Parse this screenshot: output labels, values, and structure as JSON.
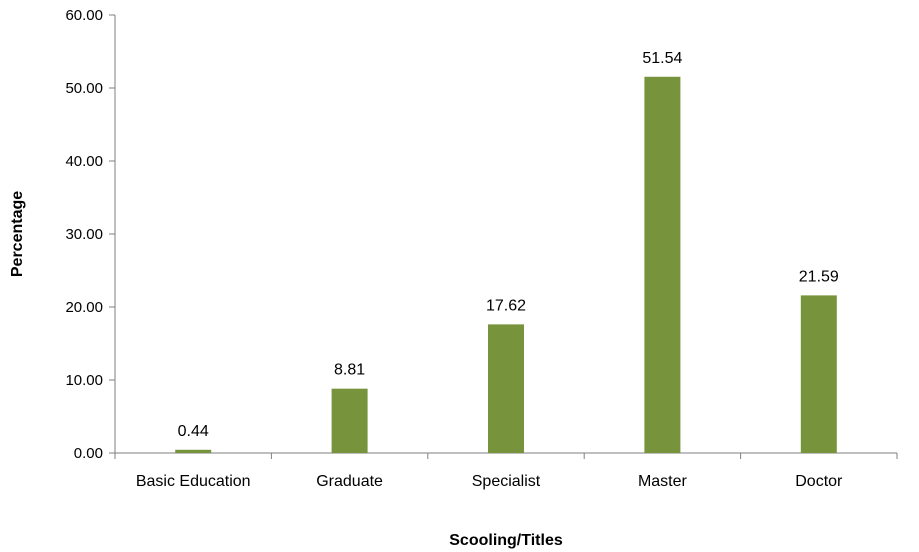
{
  "chart_data": {
    "type": "bar",
    "title": "",
    "xlabel": "Scooling/Titles",
    "ylabel": "Percentage",
    "categories": [
      "Basic Education",
      "Graduate",
      "Specialist",
      "Master",
      "Doctor"
    ],
    "values": [
      0.44,
      8.81,
      17.62,
      51.54,
      21.59
    ],
    "value_labels": [
      "0.44",
      "8.81",
      "17.62",
      "51.54",
      "21.59"
    ],
    "ylim": [
      0,
      60
    ],
    "yticks": [
      0,
      10,
      20,
      30,
      40,
      50,
      60
    ],
    "ytick_labels": [
      "0.00",
      "10.00",
      "20.00",
      "30.00",
      "40.00",
      "50.00",
      "60.00"
    ],
    "grid": false,
    "legend": "none",
    "bar_color": "#77933c"
  }
}
